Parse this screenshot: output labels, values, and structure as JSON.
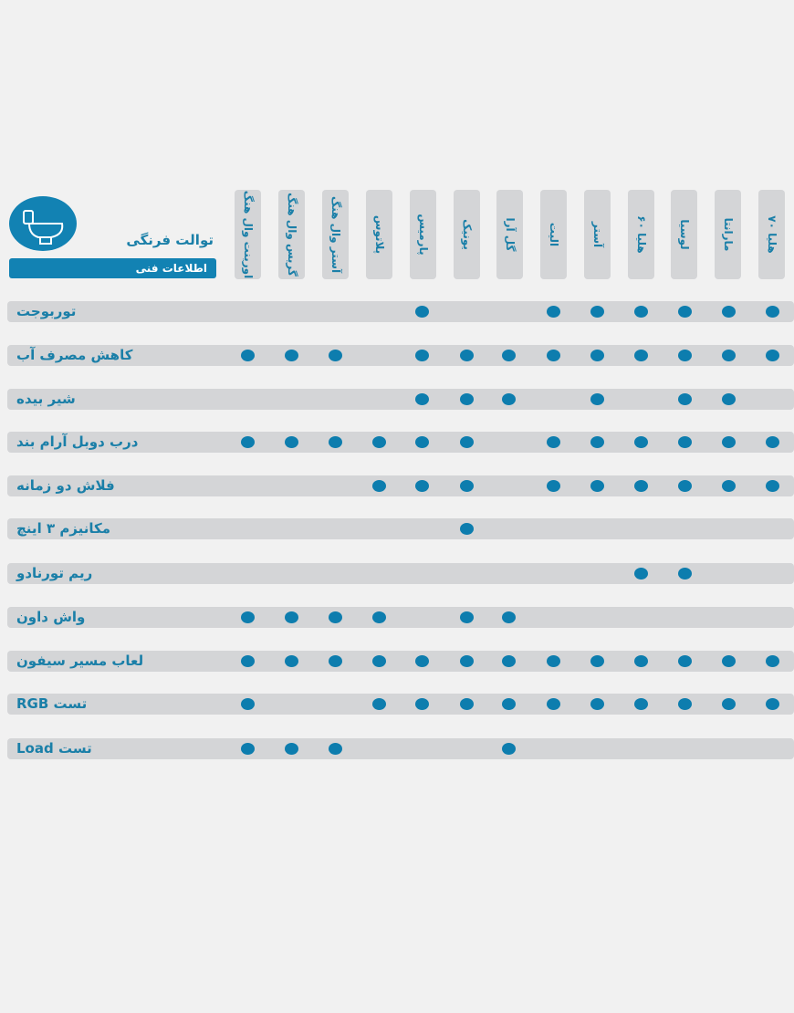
{
  "header": {
    "title": "توالت فرنگی",
    "badge": "اطلاعات فنی",
    "icon": "toilet-icon"
  },
  "columns": [
    "اورینت وال هنگ",
    "گریس وال هنگ",
    "آستر وال هنگ",
    "پلاتوس",
    "پارمیس",
    "یونیک",
    "گل آرا",
    "الیت",
    "آستر",
    "هلیا ۶۰",
    "لوسیا",
    "مارانتا",
    "هلیا ۷۰"
  ],
  "rows": [
    {
      "label": "توربوجت",
      "marks": [
        0,
        0,
        0,
        0,
        1,
        0,
        0,
        1,
        1,
        1,
        1,
        1,
        1
      ]
    },
    {
      "label": "کاهش مصرف آب",
      "marks": [
        1,
        1,
        1,
        0,
        1,
        1,
        1,
        1,
        1,
        1,
        1,
        1,
        1
      ]
    },
    {
      "label": "شیر بیده",
      "marks": [
        0,
        0,
        0,
        0,
        1,
        1,
        1,
        0,
        1,
        0,
        1,
        1,
        0
      ]
    },
    {
      "label": "درب دوبل آرام بند",
      "marks": [
        1,
        1,
        1,
        1,
        1,
        1,
        0,
        1,
        1,
        1,
        1,
        1,
        1
      ]
    },
    {
      "label": "فلاش دو زمانه",
      "marks": [
        0,
        0,
        0,
        1,
        1,
        1,
        0,
        1,
        1,
        1,
        1,
        1,
        1
      ]
    },
    {
      "label": "مکانیزم ۳ اینچ",
      "marks": [
        0,
        0,
        0,
        0,
        0,
        1,
        0,
        0,
        0,
        0,
        0,
        0,
        0
      ]
    },
    {
      "label": "ریم تورنادو",
      "marks": [
        0,
        0,
        0,
        0,
        0,
        0,
        0,
        0,
        0,
        1,
        1,
        0,
        0
      ]
    },
    {
      "label": "واش داون",
      "marks": [
        1,
        1,
        1,
        1,
        0,
        1,
        1,
        0,
        0,
        0,
        0,
        0,
        0
      ]
    },
    {
      "label": "لعاب مسیر سیفون",
      "marks": [
        1,
        1,
        1,
        1,
        1,
        1,
        1,
        1,
        1,
        1,
        1,
        1,
        1
      ]
    },
    {
      "label": "تست RGB",
      "marks": [
        1,
        0,
        0,
        1,
        1,
        1,
        1,
        1,
        1,
        1,
        1,
        1,
        1
      ]
    },
    {
      "label": "تست Load",
      "marks": [
        1,
        1,
        1,
        0,
        0,
        0,
        1,
        0,
        0,
        0,
        0,
        0,
        0
      ]
    }
  ],
  "colors": {
    "accent": "#1282b3",
    "bar": "#d4d5d7",
    "text": "#1a7fa8"
  }
}
